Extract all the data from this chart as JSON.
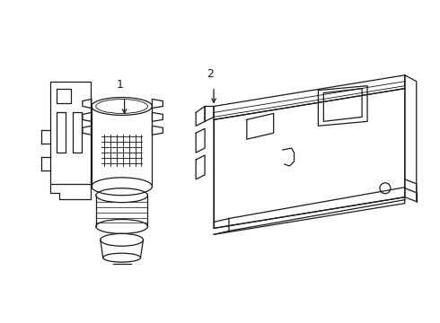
{
  "background_color": "#ffffff",
  "line_color": "#1a1a1a",
  "line_width": 0.9,
  "label1": "1",
  "label2": "2",
  "fig_width": 4.9,
  "fig_height": 3.6,
  "dpi": 100
}
